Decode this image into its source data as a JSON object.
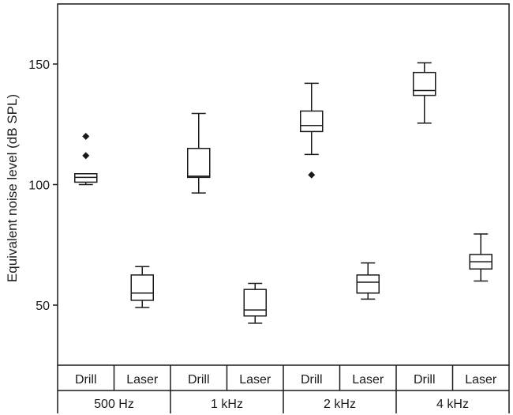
{
  "chart_data": {
    "type": "box",
    "ylabel": "Equivalent noise level (dB SPL)",
    "ylim": [
      30,
      175
    ],
    "yticks": [
      50,
      100,
      150
    ],
    "groups": [
      "500 Hz",
      "1 kHz",
      "2 kHz",
      "4 kHz"
    ],
    "subcategories": [
      "Drill",
      "Laser"
    ],
    "boxes": [
      {
        "group": "500 Hz",
        "sub": "Drill",
        "whisker_low": 100,
        "q1": 101,
        "median": 103,
        "q3": 104.5,
        "whisker_high": 104.5,
        "outliers": [
          112,
          120
        ]
      },
      {
        "group": "500 Hz",
        "sub": "Laser",
        "whisker_low": 49,
        "q1": 52,
        "median": 55,
        "q3": 62.5,
        "whisker_high": 66,
        "outliers": []
      },
      {
        "group": "1 kHz",
        "sub": "Drill",
        "whisker_low": 96.5,
        "q1": 103,
        "median": 103.5,
        "q3": 115,
        "whisker_high": 129.5,
        "outliers": []
      },
      {
        "group": "1 kHz",
        "sub": "Laser",
        "whisker_low": 42.5,
        "q1": 45.5,
        "median": 48,
        "q3": 56.5,
        "whisker_high": 59,
        "outliers": []
      },
      {
        "group": "2 kHz",
        "sub": "Drill",
        "whisker_low": 112.5,
        "q1": 122,
        "median": 124.5,
        "q3": 130.5,
        "whisker_high": 142,
        "outliers": [
          104
        ]
      },
      {
        "group": "2 kHz",
        "sub": "Laser",
        "whisker_low": 52.5,
        "q1": 55,
        "median": 59.5,
        "q3": 62.5,
        "whisker_high": 67.5,
        "outliers": []
      },
      {
        "group": "4 kHz",
        "sub": "Drill",
        "whisker_low": 125.5,
        "q1": 137,
        "median": 139,
        "q3": 146.5,
        "whisker_high": 150.5,
        "outliers": []
      },
      {
        "group": "4 kHz",
        "sub": "Laser",
        "whisker_low": 60,
        "q1": 65,
        "median": 68,
        "q3": 71,
        "whisker_high": 79.5,
        "outliers": []
      }
    ]
  }
}
